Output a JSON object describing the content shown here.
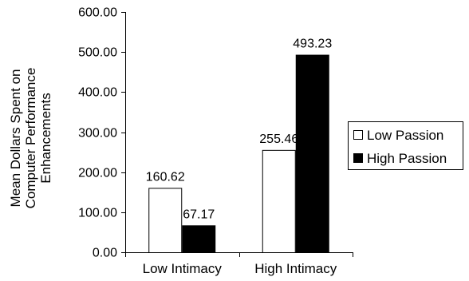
{
  "chart_data": {
    "type": "bar",
    "categories": [
      "Low Intimacy",
      "High Intimacy"
    ],
    "series": [
      {
        "name": "Low Passion",
        "values": [
          160.62,
          255.46
        ],
        "color": "#ffffff"
      },
      {
        "name": "High Passion",
        "values": [
          67.17,
          493.23
        ],
        "color": "#000000"
      }
    ],
    "data_labels": [
      [
        "160.62",
        "255.46"
      ],
      [
        "67.17",
        "493.23"
      ]
    ],
    "ylabel_lines": [
      "Mean Dollars Spent on",
      "Computer Performance",
      "Enhancements"
    ],
    "xlabel": "",
    "ylim": [
      0,
      600
    ],
    "yticks": [
      0,
      100,
      200,
      300,
      400,
      500,
      600
    ],
    "ytick_labels": [
      "0.00",
      "100.00",
      "200.00",
      "300.00",
      "400.00",
      "500.00",
      "600.00"
    ],
    "grid": false,
    "legend_position": "right"
  }
}
